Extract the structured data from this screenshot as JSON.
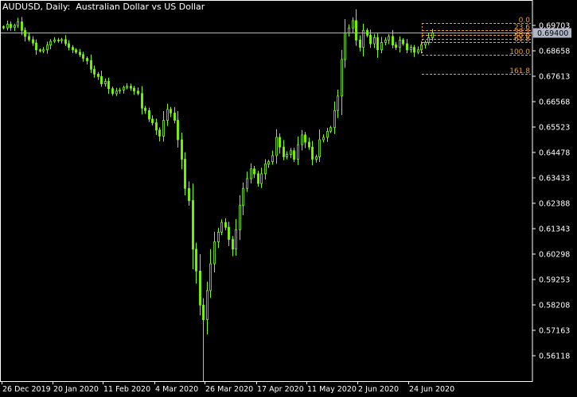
{
  "window": {
    "title": "AUDUSD, Daily:  Australian Dollar vs US Dollar"
  },
  "colors": {
    "background": "#000000",
    "candle": "#7CFC00",
    "fibonacci": "#f0a030",
    "bid_line": "#b0b8c8",
    "axis": "#ffffff"
  },
  "chart_data": {
    "type": "candlestick",
    "symbol": "AUDUSD",
    "timeframe": "Daily",
    "description": "Australian Dollar vs US Dollar",
    "ylim": [
      0.5568,
      0.7019
    ],
    "y_ticks": [
      "0.69703",
      "0.68658",
      "0.67613",
      "0.66568",
      "0.65523",
      "0.64478",
      "0.63433",
      "0.62388",
      "0.61343",
      "0.60298",
      "0.59253",
      "0.58208",
      "0.57163",
      "0.56118"
    ],
    "x_ticks": [
      "26 Dec 2019",
      "20 Jan 2020",
      "11 Feb 2020",
      "4 Mar 2020",
      "26 Mar 2020",
      "17 Apr 2020",
      "11 May 2020",
      "2 Jun 2020",
      "24 Jun 2020"
    ],
    "current_price": "0.69400",
    "fibonacci": {
      "levels": [
        "0.0",
        "23.6",
        "38.2",
        "50.0",
        "61.8",
        "100.0",
        "161.8"
      ],
      "high": 0.698,
      "low": 0.6851
    },
    "closes": [
      0.696,
      0.6975,
      0.6962,
      0.697,
      0.6985,
      0.695,
      0.6925,
      0.6912,
      0.6898,
      0.687,
      0.6865,
      0.687,
      0.689,
      0.6905,
      0.691,
      0.6908,
      0.6912,
      0.6895,
      0.688,
      0.687,
      0.686,
      0.685,
      0.6835,
      0.6825,
      0.679,
      0.677,
      0.676,
      0.673,
      0.674,
      0.671,
      0.669,
      0.67,
      0.6705,
      0.6715,
      0.672,
      0.6712,
      0.67,
      0.669,
      0.663,
      0.662,
      0.6585,
      0.657,
      0.654,
      0.6515,
      0.658,
      0.6625,
      0.661,
      0.658,
      0.65,
      0.642,
      0.63,
      0.625,
      0.605,
      0.596,
      0.582,
      0.576,
      0.588,
      0.599,
      0.608,
      0.612,
      0.616,
      0.614,
      0.609,
      0.605,
      0.613,
      0.623,
      0.63,
      0.634,
      0.638,
      0.636,
      0.632,
      0.636,
      0.64,
      0.641,
      0.6435,
      0.651,
      0.647,
      0.643,
      0.644,
      0.6455,
      0.642,
      0.648,
      0.652,
      0.649,
      0.647,
      0.642,
      0.643,
      0.65,
      0.651,
      0.6535,
      0.655,
      0.662,
      0.668,
      0.683,
      0.694,
      0.696,
      0.699,
      0.691,
      0.688,
      0.695,
      0.693,
      0.6895,
      0.692,
      0.687,
      0.69,
      0.691,
      0.6925,
      0.689,
      0.688,
      0.691,
      0.6895,
      0.687,
      0.688,
      0.686,
      0.687,
      0.689,
      0.69,
      0.692,
      0.694
    ]
  }
}
